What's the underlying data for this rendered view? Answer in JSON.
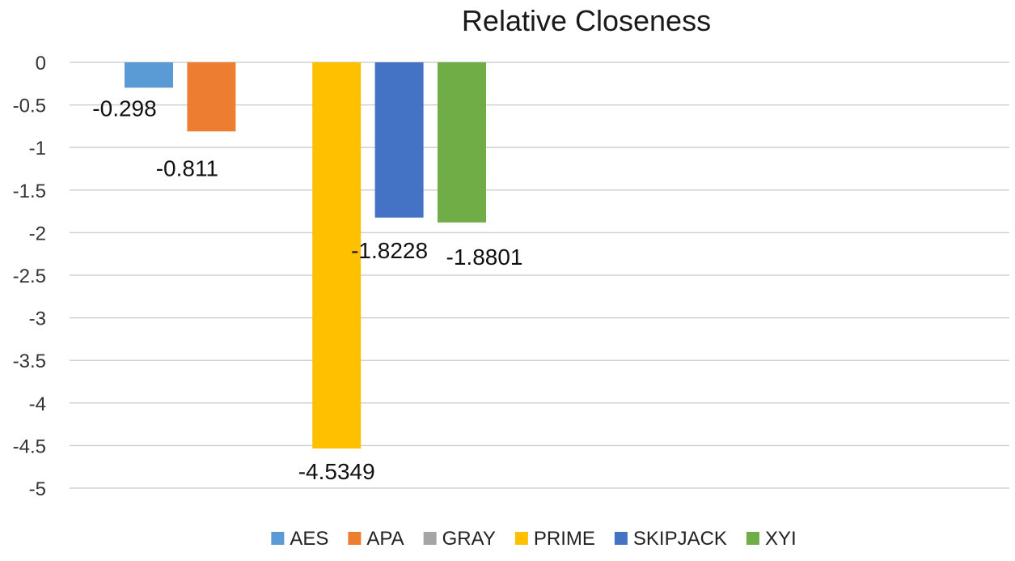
{
  "chart_data": {
    "type": "bar",
    "title": "Relative Closeness",
    "xlabel": "",
    "ylabel": "",
    "ylim": [
      -5,
      0
    ],
    "yticks": [
      0,
      -0.5,
      -1,
      -1.5,
      -2,
      -2.5,
      -3,
      -3.5,
      -4,
      -4.5,
      -5
    ],
    "ytick_labels": [
      "0",
      "-0.5",
      "-1",
      "-1.5",
      "-2",
      "-2.5",
      "-3",
      "-3.5",
      "-4",
      "-4.5",
      "-5"
    ],
    "grid": true,
    "legend_position": "bottom",
    "series": [
      {
        "name": "AES",
        "value": -0.298,
        "label": "-0.298",
        "color": "#5B9BD5"
      },
      {
        "name": "APA",
        "value": -0.811,
        "label": "-0.811",
        "color": "#ED7D31"
      },
      {
        "name": "GRAY",
        "value": 0,
        "label": "",
        "color": "#A5A5A5"
      },
      {
        "name": "PRIME",
        "value": -4.5349,
        "label": "-4.5349",
        "color": "#FFC000"
      },
      {
        "name": "SKIPJACK",
        "value": -1.8228,
        "label": "-1.8228",
        "color": "#4472C4"
      },
      {
        "name": "XYI",
        "value": -1.8801,
        "label": "-1.8801",
        "color": "#70AD47"
      }
    ]
  }
}
